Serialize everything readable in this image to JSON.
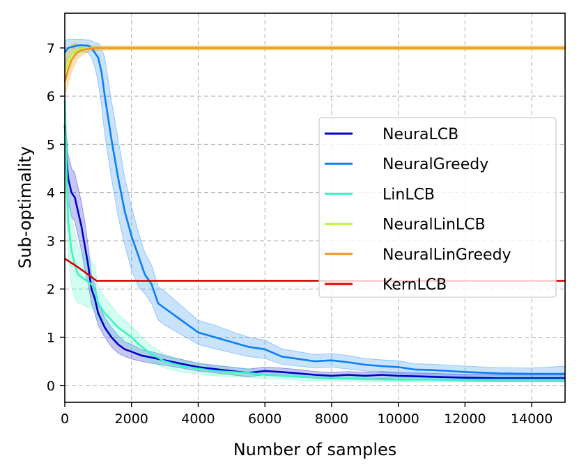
{
  "chart_data": {
    "type": "line",
    "title": "",
    "xlabel": "Number of samples",
    "ylabel": "Sub-optimality",
    "xlim": [
      0,
      15000
    ],
    "ylim": [
      -0.35,
      7.72
    ],
    "xticks": [
      0,
      2000,
      4000,
      6000,
      8000,
      10000,
      12000,
      14000
    ],
    "xtick_labels": [
      "0",
      "2000",
      "4000",
      "6000",
      "8000",
      "10000",
      "12000",
      "14000"
    ],
    "yticks": [
      0,
      1,
      2,
      3,
      4,
      5,
      6,
      7
    ],
    "ytick_labels": [
      "0",
      "1",
      "2",
      "3",
      "4",
      "5",
      "6",
      "7"
    ],
    "grid": true,
    "legend_position": "center-right",
    "series": [
      {
        "name": "NeuraLCB",
        "color": "#0000cc",
        "x": [
          0,
          50,
          100,
          200,
          300,
          400,
          500,
          600,
          700,
          800,
          900,
          1000,
          1200,
          1400,
          1600,
          1800,
          2000,
          2300,
          2600,
          3000,
          3500,
          4000,
          4500,
          5000,
          5500,
          6000,
          6500,
          7000,
          7500,
          8000,
          8500,
          9000,
          9500,
          10000,
          11000,
          12000,
          13000,
          14000,
          15000
        ],
        "y": [
          5.4,
          4.7,
          4.3,
          4.0,
          3.9,
          3.6,
          3.3,
          2.9,
          2.5,
          2.0,
          1.8,
          1.5,
          1.2,
          1.0,
          0.85,
          0.75,
          0.7,
          0.62,
          0.58,
          0.52,
          0.45,
          0.38,
          0.34,
          0.3,
          0.26,
          0.3,
          0.28,
          0.25,
          0.22,
          0.2,
          0.22,
          0.2,
          0.22,
          0.2,
          0.18,
          0.16,
          0.15,
          0.15,
          0.15
        ],
        "lower": [
          4.9,
          4.2,
          3.8,
          3.5,
          3.4,
          3.1,
          2.8,
          2.4,
          2.1,
          1.7,
          1.5,
          1.25,
          1.0,
          0.8,
          0.67,
          0.6,
          0.55,
          0.5,
          0.46,
          0.42,
          0.36,
          0.3,
          0.26,
          0.22,
          0.18,
          0.22,
          0.2,
          0.17,
          0.15,
          0.13,
          0.15,
          0.13,
          0.15,
          0.13,
          0.11,
          0.09,
          0.08,
          0.08,
          0.08
        ],
        "upper": [
          5.9,
          5.2,
          4.8,
          4.5,
          4.4,
          4.1,
          3.8,
          3.4,
          2.9,
          2.3,
          2.1,
          1.75,
          1.4,
          1.2,
          1.03,
          0.9,
          0.85,
          0.74,
          0.7,
          0.62,
          0.54,
          0.46,
          0.42,
          0.38,
          0.34,
          0.38,
          0.36,
          0.33,
          0.29,
          0.27,
          0.29,
          0.27,
          0.29,
          0.27,
          0.25,
          0.23,
          0.22,
          0.22,
          0.22
        ]
      },
      {
        "name": "NeuralGreedy",
        "color": "#0a7ff5",
        "x": [
          0,
          100,
          200,
          300,
          400,
          500,
          600,
          700,
          800,
          900,
          1000,
          1100,
          1200,
          1400,
          1600,
          1800,
          2000,
          2200,
          2400,
          2600,
          2800,
          3000,
          3500,
          4000,
          4500,
          5000,
          5500,
          6000,
          6500,
          7000,
          7500,
          8000,
          8500,
          9000,
          9500,
          10000,
          10500,
          11000,
          12000,
          13000,
          14000,
          15000
        ],
        "y": [
          6.9,
          7.0,
          7.02,
          7.04,
          7.05,
          7.06,
          7.05,
          7.05,
          7.0,
          6.9,
          6.8,
          6.5,
          6.0,
          5.1,
          4.3,
          3.6,
          3.1,
          2.7,
          2.3,
          2.1,
          1.7,
          1.6,
          1.35,
          1.1,
          1.0,
          0.9,
          0.8,
          0.75,
          0.6,
          0.55,
          0.5,
          0.52,
          0.48,
          0.43,
          0.4,
          0.38,
          0.33,
          0.32,
          0.28,
          0.25,
          0.24,
          0.24
        ],
        "lower": [
          6.6,
          6.8,
          6.85,
          6.9,
          6.9,
          6.92,
          6.92,
          6.9,
          6.8,
          6.6,
          6.3,
          5.8,
          5.2,
          4.3,
          3.5,
          2.9,
          2.4,
          2.05,
          1.9,
          1.7,
          1.35,
          1.25,
          1.05,
          0.85,
          0.76,
          0.68,
          0.6,
          0.56,
          0.44,
          0.4,
          0.36,
          0.38,
          0.34,
          0.3,
          0.27,
          0.25,
          0.21,
          0.2,
          0.16,
          0.14,
          0.13,
          0.13
        ],
        "upper": [
          7.15,
          7.18,
          7.18,
          7.18,
          7.18,
          7.18,
          7.17,
          7.17,
          7.15,
          7.1,
          7.1,
          7.0,
          6.8,
          5.9,
          5.1,
          4.3,
          3.7,
          3.2,
          2.75,
          2.5,
          2.05,
          1.95,
          1.65,
          1.35,
          1.25,
          1.12,
          1.0,
          0.94,
          0.76,
          0.7,
          0.64,
          0.66,
          0.62,
          0.56,
          0.53,
          0.51,
          0.45,
          0.44,
          0.4,
          0.37,
          0.36,
          0.4
        ]
      },
      {
        "name": "LinLCB",
        "color": "#3cf5c0",
        "x": [
          0,
          50,
          100,
          200,
          300,
          400,
          500,
          600,
          700,
          800,
          900,
          1000,
          1200,
          1400,
          1600,
          1800,
          2000,
          2300,
          2600,
          3000,
          3500,
          4000,
          4500,
          5000,
          5500,
          6000,
          6500,
          7000,
          8000,
          9000,
          10000,
          11000,
          12000,
          13000,
          14000,
          15000
        ],
        "y": [
          5.9,
          4.5,
          3.4,
          2.8,
          2.5,
          2.3,
          2.25,
          2.2,
          2.15,
          2.1,
          2.0,
          1.7,
          1.5,
          1.35,
          1.2,
          1.1,
          1.0,
          0.8,
          0.65,
          0.5,
          0.4,
          0.35,
          0.3,
          0.28,
          0.26,
          0.22,
          0.2,
          0.18,
          0.15,
          0.13,
          0.12,
          0.12,
          0.12,
          0.12,
          0.12,
          0.12
        ],
        "lower": [
          5.2,
          3.8,
          2.7,
          2.1,
          1.8,
          1.7,
          1.7,
          1.65,
          1.62,
          1.6,
          1.55,
          1.35,
          1.18,
          1.05,
          0.92,
          0.85,
          0.76,
          0.6,
          0.48,
          0.36,
          0.28,
          0.24,
          0.2,
          0.18,
          0.17,
          0.14,
          0.13,
          0.11,
          0.09,
          0.08,
          0.07,
          0.07,
          0.07,
          0.07,
          0.07,
          0.07
        ],
        "upper": [
          6.5,
          5.2,
          4.1,
          3.5,
          3.2,
          2.9,
          2.8,
          2.75,
          2.7,
          2.6,
          2.45,
          2.05,
          1.82,
          1.65,
          1.48,
          1.35,
          1.24,
          1.0,
          0.82,
          0.64,
          0.52,
          0.46,
          0.4,
          0.38,
          0.35,
          0.3,
          0.27,
          0.25,
          0.21,
          0.18,
          0.17,
          0.17,
          0.17,
          0.17,
          0.17,
          0.17
        ]
      },
      {
        "name": "NeuralLinLCB",
        "color": "#c2f542",
        "x": [
          0,
          100,
          200,
          300,
          400,
          500,
          600,
          800,
          1000,
          1500,
          2000,
          3000,
          5000,
          8000,
          11000,
          15000
        ],
        "y": [
          6.5,
          6.7,
          6.85,
          6.93,
          6.96,
          6.98,
          6.99,
          7.0,
          7.0,
          7.0,
          7.0,
          7.0,
          7.0,
          7.0,
          7.0,
          7.0
        ],
        "lower": [
          6.1,
          6.4,
          6.6,
          6.78,
          6.84,
          6.88,
          6.9,
          6.94,
          6.95,
          6.96,
          6.96,
          6.96,
          6.96,
          6.96,
          6.96,
          6.96
        ],
        "upper": [
          6.9,
          7.0,
          7.1,
          7.08,
          7.08,
          7.07,
          7.07,
          7.05,
          7.04,
          7.04,
          7.04,
          7.04,
          7.04,
          7.04,
          7.04,
          7.04
        ]
      },
      {
        "name": "NeuralLinGreedy",
        "color": "#f5921e",
        "x": [
          0,
          100,
          200,
          300,
          400,
          500,
          600,
          700,
          800,
          1000,
          1500,
          2000,
          3000,
          5000,
          8000,
          11000,
          15000
        ],
        "y": [
          6.3,
          6.55,
          6.75,
          6.85,
          6.92,
          6.95,
          6.97,
          6.98,
          6.99,
          7.0,
          7.0,
          7.0,
          7.0,
          7.0,
          7.0,
          7.0,
          7.0
        ],
        "lower": [
          6.0,
          6.25,
          6.5,
          6.65,
          6.78,
          6.84,
          6.88,
          6.92,
          6.94,
          6.95,
          6.96,
          6.96,
          6.96,
          6.96,
          6.96,
          6.96,
          6.96
        ],
        "upper": [
          6.7,
          6.9,
          7.05,
          7.1,
          7.08,
          7.06,
          7.06,
          7.05,
          7.04,
          7.04,
          7.04,
          7.04,
          7.04,
          7.04,
          7.04,
          7.04,
          7.04
        ]
      },
      {
        "name": "KernLCB",
        "color": "#dd0000",
        "x": [
          0,
          400,
          800,
          950,
          1100,
          15000
        ],
        "y": [
          2.63,
          2.45,
          2.25,
          2.17,
          2.17,
          2.17
        ]
      }
    ]
  }
}
